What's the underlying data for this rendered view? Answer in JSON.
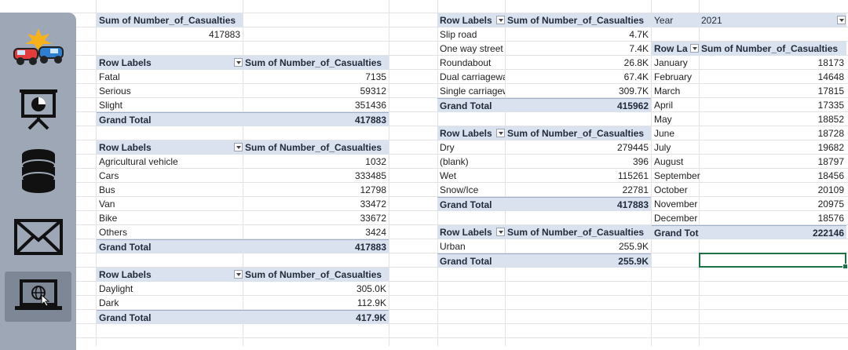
{
  "sidebar": {
    "items": [
      {
        "name": "accident-icon"
      },
      {
        "name": "presentation-icon"
      },
      {
        "name": "database-icon"
      },
      {
        "name": "mail-icon"
      },
      {
        "name": "web-laptop-icon"
      }
    ]
  },
  "total_block": {
    "label": "Sum of Number_of_Casualties",
    "value": "417883"
  },
  "severity": {
    "header_row": "Row Labels",
    "header_value": "Sum of Number_of_Casualties",
    "rows": [
      {
        "label": "Fatal",
        "value": "7135"
      },
      {
        "label": "Serious",
        "value": "59312"
      },
      {
        "label": "Slight",
        "value": "351436"
      }
    ],
    "total_label": "Grand Total",
    "total_value": "417883"
  },
  "vehicle": {
    "header_row": "Row Labels",
    "header_value": "Sum of Number_of_Casualties",
    "rows": [
      {
        "label": "Agricultural vehicle",
        "value": "1032"
      },
      {
        "label": "Cars",
        "value": "333485"
      },
      {
        "label": "Bus",
        "value": "12798"
      },
      {
        "label": "Van",
        "value": "33472"
      },
      {
        "label": "Bike",
        "value": "33672"
      },
      {
        "label": "Others",
        "value": "3424"
      }
    ],
    "total_label": "Grand Total",
    "total_value": "417883"
  },
  "light": {
    "header_row": "Row Labels",
    "header_value": "Sum of Number_of_Casualties",
    "rows": [
      {
        "label": "Daylight",
        "value": "305.0K"
      },
      {
        "label": "Dark",
        "value": "112.9K"
      }
    ],
    "total_label": "Grand Total",
    "total_value": "417.9K"
  },
  "road": {
    "header_row": "Row Labels",
    "header_value": "Sum of Number_of_Casualties",
    "rows": [
      {
        "label": "Slip road",
        "value": "4.7K"
      },
      {
        "label": "One way street",
        "value": "7.4K"
      },
      {
        "label": "Roundabout",
        "value": "26.8K"
      },
      {
        "label": "Dual carriageway",
        "value": "67.4K"
      },
      {
        "label": "Single carriageway",
        "value": "309.7K"
      }
    ],
    "total_label": "Grand Total",
    "total_value": "415962"
  },
  "surface": {
    "header_row": "Row Labels",
    "header_value": "Sum of Number_of_Casualties",
    "rows": [
      {
        "label": "Dry",
        "value": "279445"
      },
      {
        "label": "(blank)",
        "value": "396"
      },
      {
        "label": "Wet",
        "value": "115261"
      },
      {
        "label": "Snow/Ice",
        "value": "22781"
      }
    ],
    "total_label": "Grand Total",
    "total_value": "417883"
  },
  "area": {
    "header_row": "Row Labels",
    "header_value": "Sum of Number_of_Casualties",
    "rows": [
      {
        "label": "Urban",
        "value": "255.9K"
      }
    ],
    "total_label": "Grand Total",
    "total_value": "255.9K"
  },
  "month": {
    "filter_label": "Year",
    "filter_value": "2021",
    "header_row": "Row Labels",
    "header_value": "Sum of Number_of_Casualties",
    "rows": [
      {
        "label": "January",
        "value": "18173"
      },
      {
        "label": "February",
        "value": "14648"
      },
      {
        "label": "March",
        "value": "17815"
      },
      {
        "label": "April",
        "value": "17335"
      },
      {
        "label": "May",
        "value": "18852"
      },
      {
        "label": "June",
        "value": "18728"
      },
      {
        "label": "July",
        "value": "19682"
      },
      {
        "label": "August",
        "value": "18797"
      },
      {
        "label": "September",
        "value": "18456"
      },
      {
        "label": "October",
        "value": "20109"
      },
      {
        "label": "November",
        "value": "20975"
      },
      {
        "label": "December",
        "value": "18576"
      }
    ],
    "total_label": "Grand Total",
    "total_value": "222146"
  }
}
